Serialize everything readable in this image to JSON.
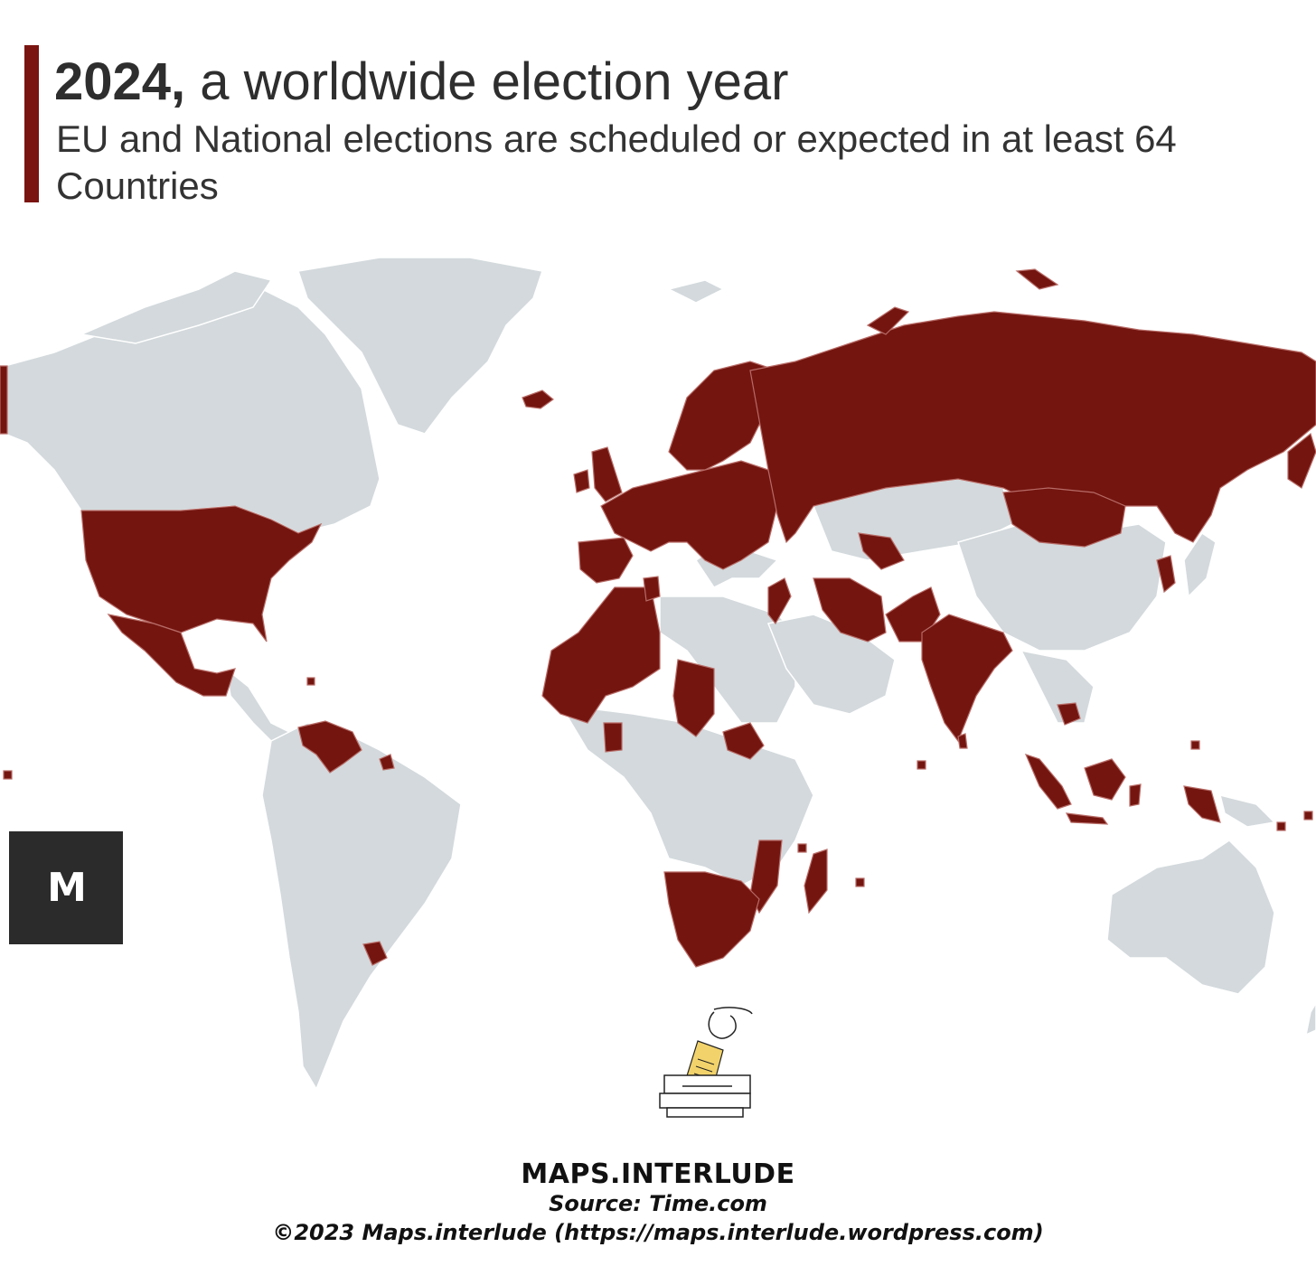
{
  "header": {
    "title_year": "2024,",
    "title_rest": " a worldwide election year",
    "subtitle": "EU and National elections are scheduled or expected in at least 64 Countries"
  },
  "colors": {
    "election": "#741510",
    "land": "#d3d9dc",
    "accent": "#7a1410",
    "logo_bg": "#2b2b2b"
  },
  "logo": {
    "text": "M"
  },
  "footer": {
    "brand": "MAPS.INTERLUDE",
    "source": "Source: Time.com",
    "copyright": "©2023 Maps.interlude (https://maps.interlude.wordpress.com)"
  },
  "icons": [
    "ballot-box-icon",
    "logo-mark"
  ]
}
